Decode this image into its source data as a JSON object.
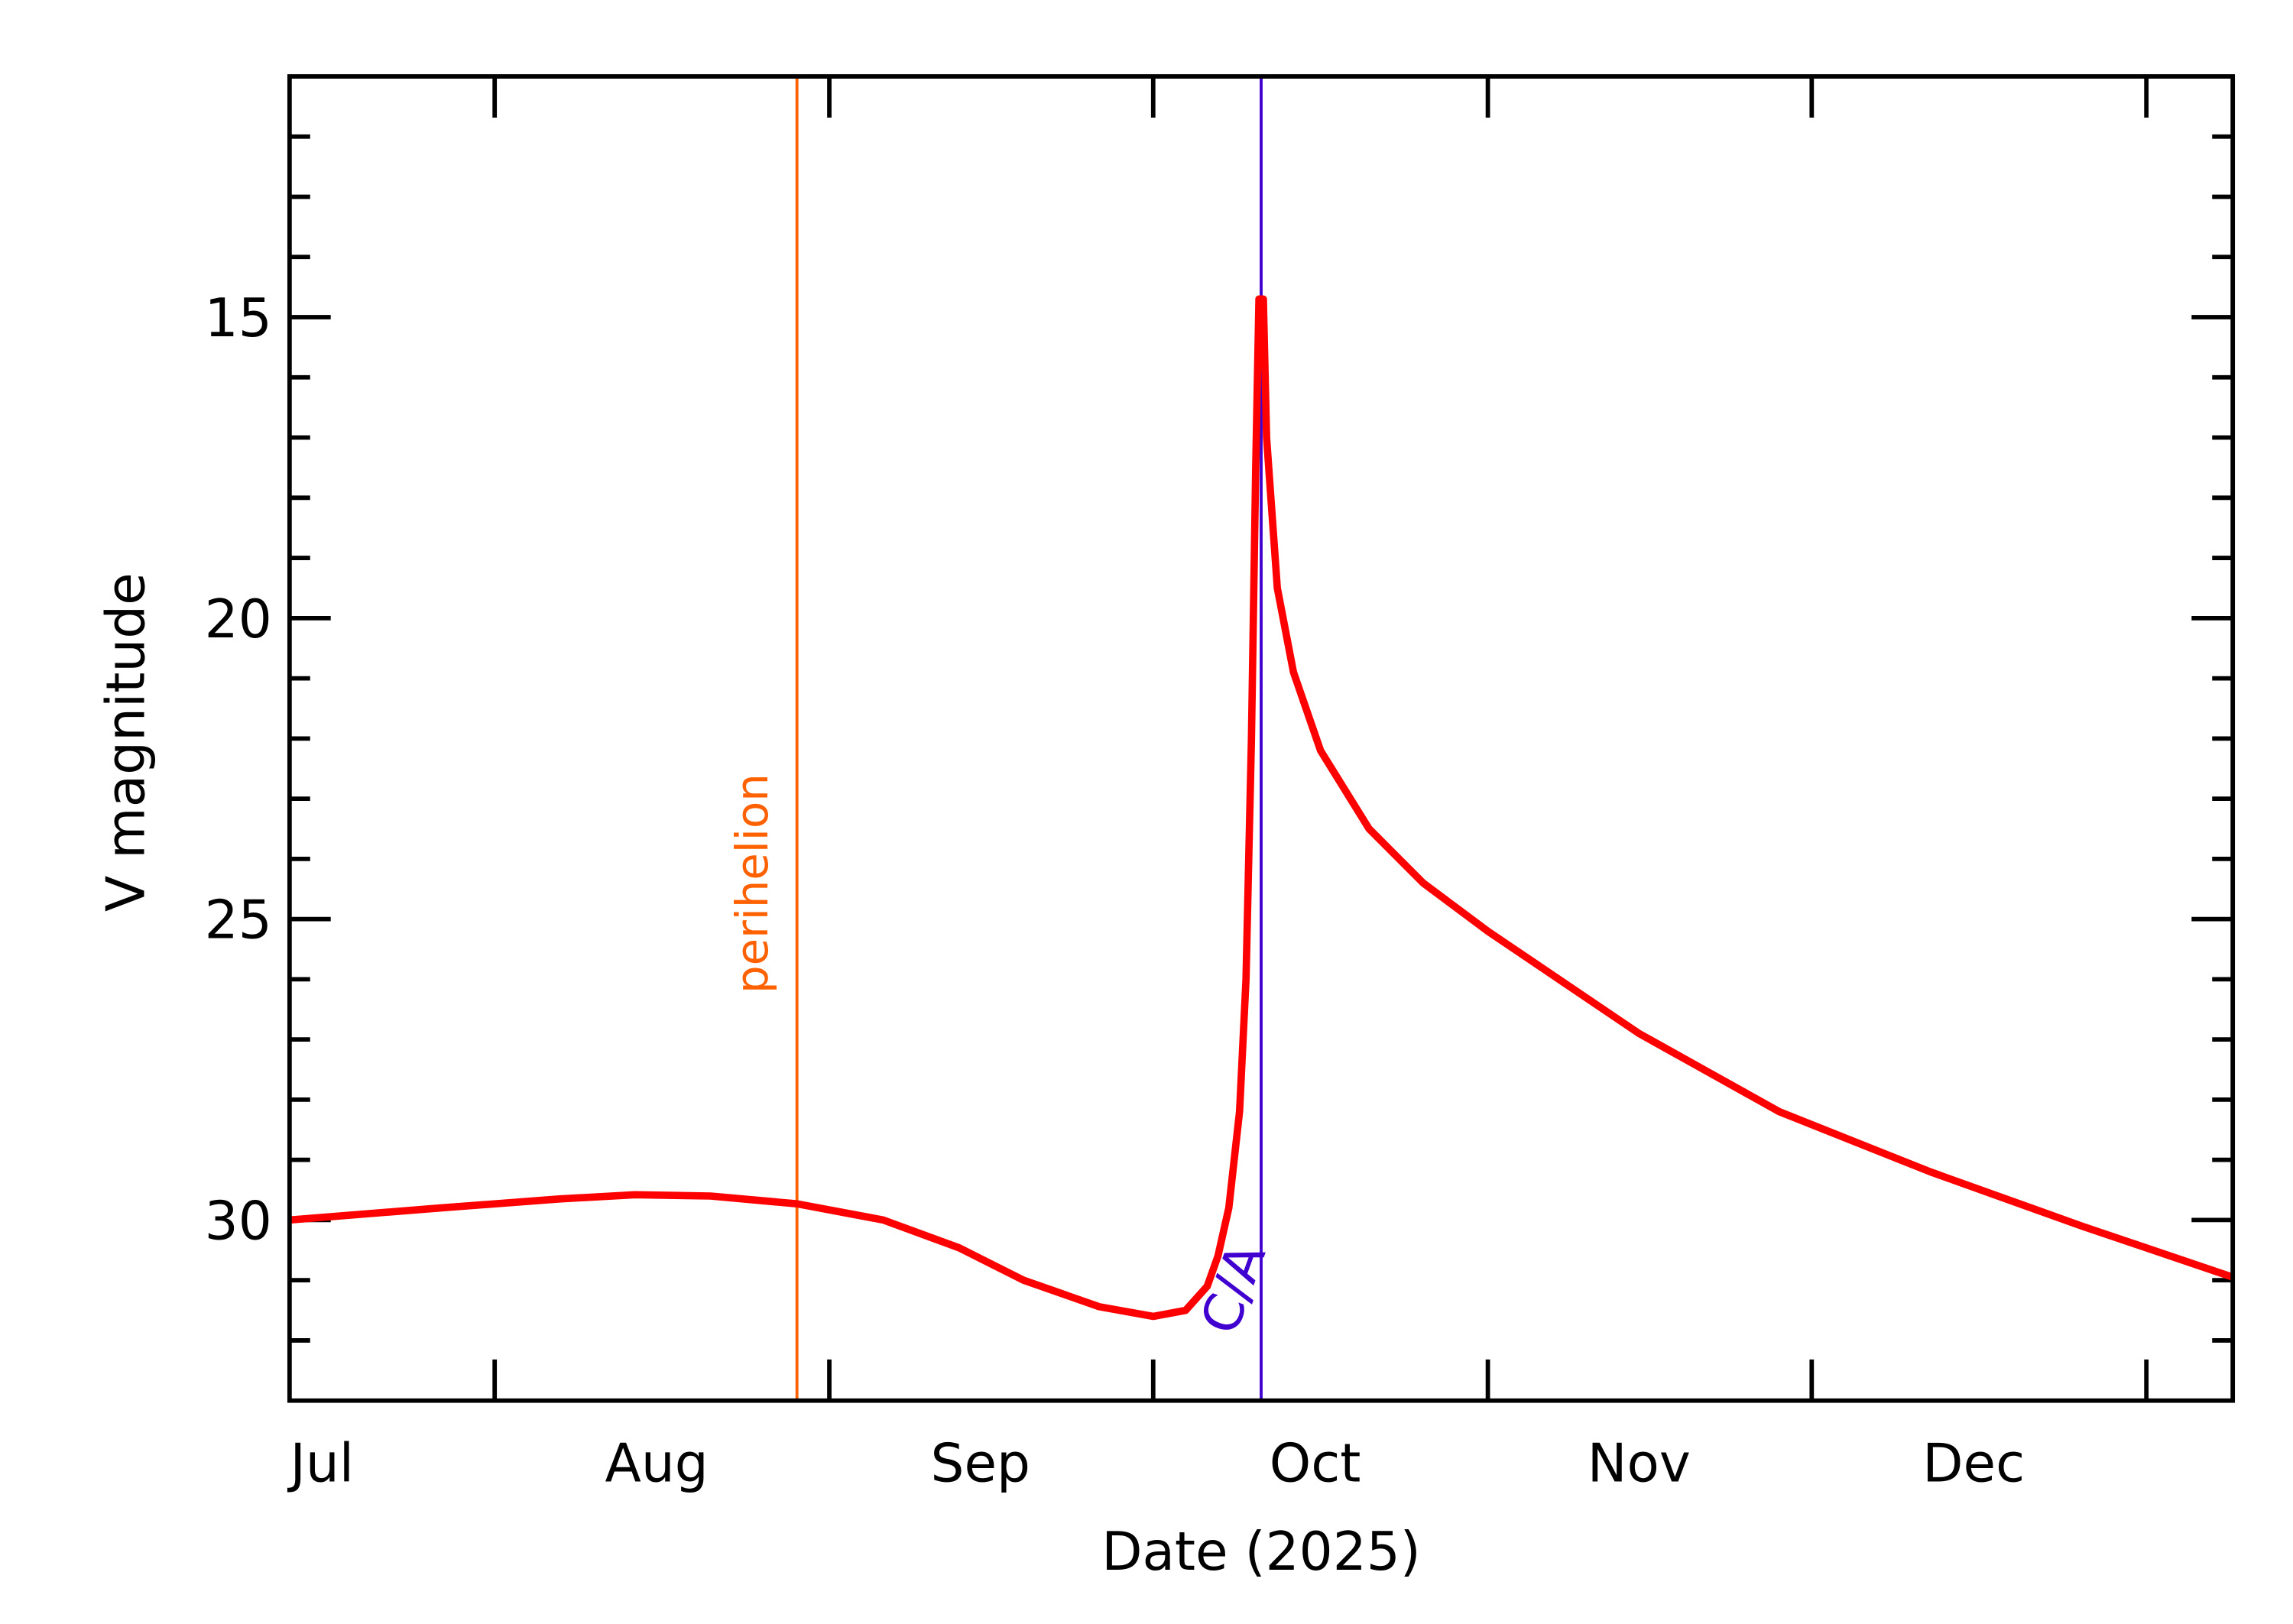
{
  "chart_data": {
    "type": "line",
    "title": "",
    "xlabel": "Date (2025)",
    "ylabel": "V magnitude",
    "x_range": [
      "2025-07-13",
      "2026-01-09"
    ],
    "ylim": [
      33,
      11
    ],
    "y_inverted": true,
    "y_ticks": [
      15,
      20,
      25,
      30
    ],
    "x_tick_labels": [
      {
        "label": "Jul",
        "date": "2025-07-16"
      },
      {
        "label": "Aug",
        "date": "2025-08-16"
      },
      {
        "label": "Sep",
        "date": "2025-09-15"
      },
      {
        "label": "Oct",
        "date": "2025-10-16"
      },
      {
        "label": "Nov",
        "date": "2025-11-15"
      },
      {
        "label": "Dec",
        "date": "2025-12-16"
      }
    ],
    "x_major_ticks": [
      "2025-08-01",
      "2025-09-01",
      "2025-10-01",
      "2025-11-01",
      "2025-12-01",
      "2026-01-01"
    ],
    "grid": false,
    "colors": {
      "curve": "#ff0000",
      "perihelion": "#ff6000",
      "ca": "#4000d0",
      "axes": "#000000"
    },
    "markers": [
      {
        "label": "perihelion",
        "date": "2025-08-29"
      },
      {
        "label": "C/A",
        "date": "2025-10-11"
      }
    ],
    "series": [
      {
        "points": [
          [
            "2025-07-13",
            30.0
          ],
          [
            "2025-07-27",
            29.8
          ],
          [
            "2025-08-07",
            29.65
          ],
          [
            "2025-08-14",
            29.58
          ],
          [
            "2025-08-21",
            29.6
          ],
          [
            "2025-08-29",
            29.73
          ],
          [
            "2025-09-06",
            30.0
          ],
          [
            "2025-09-13",
            30.46
          ],
          [
            "2025-09-19",
            31.0
          ],
          [
            "2025-09-26",
            31.44
          ],
          [
            "2025-10-01",
            31.6
          ],
          [
            "2025-10-04",
            31.5
          ],
          [
            "2025-10-06",
            31.1
          ],
          [
            "2025-10-07",
            30.6
          ],
          [
            "2025-10-08",
            29.8
          ],
          [
            "2025-10-09",
            28.2
          ],
          [
            "2025-10-09.6",
            26.0
          ],
          [
            "2025-10-10.1",
            22.0
          ],
          [
            "2025-10-10.5",
            17.5
          ],
          [
            "2025-10-10.8",
            14.7
          ],
          [
            "2025-10-11.2",
            14.7
          ],
          [
            "2025-10-11.5",
            17.0
          ],
          [
            "2025-10-12.5",
            19.5
          ],
          [
            "2025-10-14",
            20.9
          ],
          [
            "2025-10-16.5",
            22.2
          ],
          [
            "2025-10-21",
            23.5
          ],
          [
            "2025-10-26",
            24.4
          ],
          [
            "2025-11-01",
            25.2
          ],
          [
            "2025-11-15",
            26.9
          ],
          [
            "2025-11-28",
            28.2
          ],
          [
            "2025-12-12",
            29.2
          ],
          [
            "2025-12-26",
            30.1
          ],
          [
            "2026-01-09",
            30.95
          ]
        ]
      }
    ]
  }
}
